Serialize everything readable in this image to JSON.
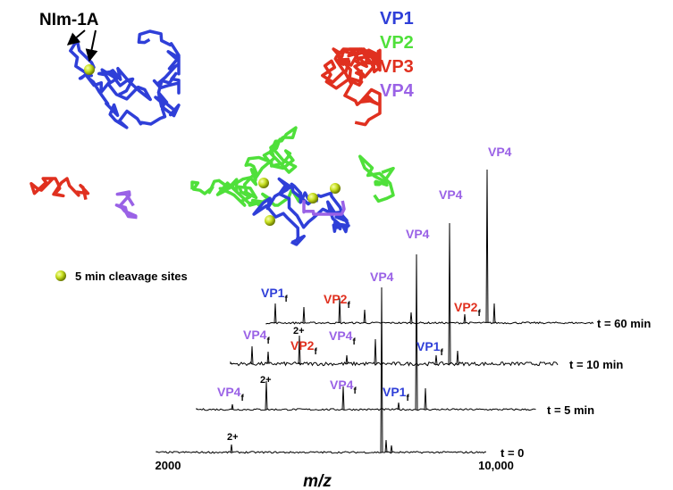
{
  "annotation": "NIm-1A",
  "legend": [
    {
      "label": "VP1",
      "color": "#2f3fd8"
    },
    {
      "label": "VP2",
      "color": "#4fe03a"
    },
    {
      "label": "VP3",
      "color": "#e0301f"
    },
    {
      "label": "VP4",
      "color": "#9a62e6"
    }
  ],
  "sphere_key": "5 min cleavage sites",
  "traces": [
    {
      "label": "t = 60 min",
      "peaks": [
        {
          "text": "VP1",
          "sub": "f",
          "color": "#2f3fd8"
        },
        {
          "text": "VP2",
          "sub": "f",
          "color": "#e0301f"
        },
        {
          "text": "VP2",
          "sub": "f",
          "color": "#e0301f"
        },
        {
          "text": "VP4",
          "color": "#9a62e6"
        }
      ]
    },
    {
      "label": "t = 10 min",
      "peaks": [
        {
          "text": "VP4",
          "sub": "f",
          "color": "#9a62e6"
        },
        {
          "text": "2+",
          "color": "#000000"
        },
        {
          "text": "VP2",
          "sub": "f",
          "color": "#e0301f"
        },
        {
          "text": "VP4",
          "sub": "f",
          "color": "#9a62e6"
        },
        {
          "text": "VP1",
          "sub": "f",
          "color": "#2f3fd8"
        },
        {
          "text": "VP4",
          "color": "#9a62e6"
        }
      ]
    },
    {
      "label": "t = 5 min",
      "peaks": [
        {
          "text": "VP4",
          "sub": "f",
          "color": "#9a62e6"
        },
        {
          "text": "2+",
          "color": "#000000"
        },
        {
          "text": "VP4",
          "sub": "f",
          "color": "#9a62e6"
        },
        {
          "text": "VP1",
          "sub": "f",
          "color": "#2f3fd8"
        },
        {
          "text": "VP4",
          "color": "#9a62e6"
        }
      ]
    },
    {
      "label": "t = 0",
      "peaks": [
        {
          "text": "2+",
          "color": "#000000"
        },
        {
          "text": "VP4",
          "color": "#9a62e6"
        }
      ]
    }
  ],
  "x_axis": {
    "start": "2000",
    "end": "10,000",
    "label": "m/z"
  }
}
